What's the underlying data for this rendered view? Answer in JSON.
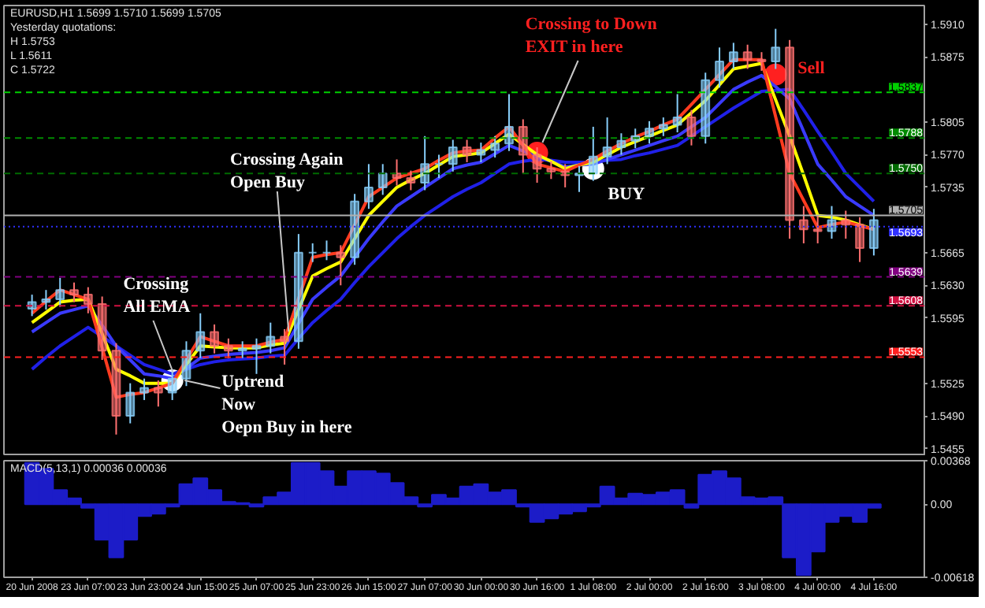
{
  "chart_data": [
    {
      "type": "candlestick",
      "title": "EURUSD,H1 1.5699 1.5710 1.5699 1.5705",
      "categories": [
        null,
        null,
        null,
        null,
        null,
        null,
        null,
        null,
        null,
        null,
        null,
        null,
        null,
        null,
        null,
        null,
        null,
        null,
        null,
        null,
        null,
        null,
        null,
        null,
        null,
        null,
        null,
        null,
        null,
        null,
        null,
        null,
        null,
        null,
        null,
        null,
        null,
        null,
        null,
        null,
        null,
        null,
        null,
        null,
        null,
        null,
        null,
        null,
        null,
        null,
        null,
        null,
        null,
        null,
        null,
        null,
        null,
        null,
        null,
        null,
        null
      ],
      "ohlc": [
        [
          1.5605,
          1.562,
          1.5597,
          1.5612
        ],
        [
          1.5612,
          1.5625,
          1.5604,
          1.5615
        ],
        [
          1.5615,
          1.5638,
          1.5607,
          1.5625
        ],
        [
          1.5625,
          1.5633,
          1.5612,
          1.562
        ],
        [
          1.562,
          1.5628,
          1.56,
          1.561
        ],
        [
          1.561,
          1.5618,
          1.555,
          1.556
        ],
        [
          1.556,
          1.5568,
          1.547,
          1.549
        ],
        [
          1.549,
          1.5525,
          1.5482,
          1.5515
        ],
        [
          1.5515,
          1.553,
          1.5507,
          1.552
        ],
        [
          1.552,
          1.5528,
          1.55,
          1.5515
        ],
        [
          1.5515,
          1.554,
          1.5507,
          1.553
        ],
        [
          1.553,
          1.557,
          1.5522,
          1.556
        ],
        [
          1.556,
          1.56,
          1.5552,
          1.558
        ],
        [
          1.558,
          1.5588,
          1.5557,
          1.5565
        ],
        [
          1.5565,
          1.5573,
          1.5552,
          1.556
        ],
        [
          1.556,
          1.557,
          1.5552,
          1.5562
        ],
        [
          1.5562,
          1.5573,
          1.5535,
          1.5565
        ],
        [
          1.5565,
          1.559,
          1.5557,
          1.5575
        ],
        [
          1.5575,
          1.5583,
          1.5545,
          1.557
        ],
        [
          1.557,
          1.5685,
          1.5562,
          1.5665
        ],
        [
          1.5665,
          1.5675,
          1.5655,
          1.5665
        ],
        [
          1.5665,
          1.5678,
          1.5657,
          1.5665
        ],
        [
          1.5665,
          1.5673,
          1.563,
          1.566
        ],
        [
          1.566,
          1.5728,
          1.5652,
          1.572
        ],
        [
          1.572,
          1.576,
          1.5712,
          1.5735
        ],
        [
          1.5735,
          1.576,
          1.5727,
          1.575
        ],
        [
          1.575,
          1.5765,
          1.5737,
          1.5745
        ],
        [
          1.5745,
          1.5753,
          1.5732,
          1.574
        ],
        [
          1.574,
          1.579,
          1.5732,
          1.576
        ],
        [
          1.576,
          1.577,
          1.5745,
          1.576
        ],
        [
          1.576,
          1.5786,
          1.5752,
          1.5778
        ],
        [
          1.5778,
          1.5786,
          1.5762,
          1.577
        ],
        [
          1.577,
          1.5783,
          1.5762,
          1.5775
        ],
        [
          1.5775,
          1.579,
          1.5767,
          1.5782
        ],
        [
          1.5782,
          1.5835,
          1.5774,
          1.58
        ],
        [
          1.58,
          1.5808,
          1.575,
          1.577
        ],
        [
          1.577,
          1.5778,
          1.574,
          1.5755
        ],
        [
          1.5755,
          1.5763,
          1.5744,
          1.5752
        ],
        [
          1.5752,
          1.576,
          1.5735,
          1.5748
        ],
        [
          1.5748,
          1.5758,
          1.573,
          1.575
        ],
        [
          1.575,
          1.58,
          1.5742,
          1.5768
        ],
        [
          1.5768,
          1.581,
          1.576,
          1.5778
        ],
        [
          1.5778,
          1.5793,
          1.577,
          1.5785
        ],
        [
          1.5785,
          1.5798,
          1.5777,
          1.579
        ],
        [
          1.579,
          1.5806,
          1.5782,
          1.5798
        ],
        [
          1.5798,
          1.581,
          1.579,
          1.5802
        ],
        [
          1.5802,
          1.5835,
          1.5794,
          1.581
        ],
        [
          1.581,
          1.5818,
          1.578,
          1.579
        ],
        [
          1.579,
          1.5858,
          1.5782,
          1.585
        ],
        [
          1.585,
          1.5885,
          1.5842,
          1.587
        ],
        [
          1.587,
          1.589,
          1.5862,
          1.588
        ],
        [
          1.588,
          1.5888,
          1.5862,
          1.5872
        ],
        [
          1.5872,
          1.588,
          1.586,
          1.587
        ],
        [
          1.587,
          1.5905,
          1.5862,
          1.5885
        ],
        [
          1.5885,
          1.5893,
          1.568,
          1.57
        ],
        [
          1.57,
          1.5715,
          1.5675,
          1.569
        ],
        [
          1.569,
          1.5705,
          1.5675,
          1.5688
        ],
        [
          1.5688,
          1.5715,
          1.568,
          1.57
        ],
        [
          1.57,
          1.571,
          1.568,
          1.5695
        ],
        [
          1.5695,
          1.5703,
          1.5655,
          1.567
        ],
        [
          1.567,
          1.5712,
          1.5662,
          1.57
        ]
      ],
      "series": [
        {
          "type": "scatter",
          "marker": "circle",
          "color": "#ffffff",
          "values": [
            null,
            null,
            null,
            null,
            null,
            null,
            null,
            null,
            null,
            null,
            1.5528,
            null,
            null,
            null,
            null,
            null,
            null,
            null,
            null,
            null,
            null,
            null,
            null,
            null,
            null,
            null,
            null,
            null,
            null,
            null,
            null,
            null,
            null,
            null,
            null,
            null,
            null,
            null,
            null,
            null,
            1.5755,
            null,
            null,
            null,
            null,
            null,
            null,
            null,
            null,
            null,
            null,
            null,
            null,
            null,
            null,
            null,
            null,
            null,
            null,
            null,
            null
          ]
        },
        {
          "type": "scatter",
          "marker": "circle",
          "color": "#ff2020",
          "values": [
            null,
            null,
            null,
            null,
            null,
            null,
            null,
            null,
            null,
            null,
            null,
            null,
            null,
            null,
            null,
            null,
            null,
            null,
            null,
            null,
            null,
            null,
            null,
            null,
            null,
            null,
            null,
            null,
            null,
            null,
            null,
            null,
            null,
            null,
            null,
            null,
            1.5772,
            null,
            null,
            null,
            null,
            null,
            null,
            null,
            null,
            null,
            null,
            null,
            null,
            null,
            null,
            null,
            null,
            1.5856,
            null,
            null,
            null,
            null,
            null,
            null,
            null
          ]
        },
        {
          "type": "line",
          "color": "#2020e8",
          "values": [
            1.554,
            1.5553,
            1.5565,
            1.5575,
            1.5585,
            1.5575,
            1.5565,
            1.5555,
            1.5545,
            1.554,
            1.5535,
            1.554,
            1.5545,
            1.5548,
            1.555,
            1.5551,
            1.5552,
            1.5554,
            1.5555,
            1.5573,
            1.559,
            1.5603,
            1.5615,
            1.5633,
            1.565,
            1.5665,
            1.568,
            1.5693,
            1.5705,
            1.5715,
            1.5725,
            1.5733,
            1.574,
            1.575,
            1.576,
            1.5763,
            1.5765,
            1.5764,
            1.5762,
            1.5762,
            1.5762,
            1.5764,
            1.5765,
            1.5769,
            1.5772,
            1.5776,
            1.578,
            1.579,
            1.58,
            1.581,
            1.582,
            1.5829,
            1.5838,
            1.5839,
            1.584,
            1.5818,
            1.5795,
            1.5773,
            1.575,
            1.5735,
            1.572
          ]
        },
        {
          "type": "line",
          "color": "#3a3aff",
          "values": [
            1.558,
            1.559,
            1.56,
            1.5604,
            1.5608,
            1.5587,
            1.5565,
            1.555,
            1.5535,
            1.5533,
            1.553,
            1.5541,
            1.5552,
            1.5554,
            1.5556,
            1.5557,
            1.5558,
            1.556,
            1.5563,
            1.5589,
            1.5615,
            1.5628,
            1.564,
            1.566,
            1.568,
            1.5698,
            1.5715,
            1.5725,
            1.5735,
            1.5745,
            1.5755,
            1.5759,
            1.5762,
            1.5771,
            1.578,
            1.5774,
            1.5768,
            1.5763,
            1.5757,
            1.5759,
            1.576,
            1.5765,
            1.577,
            1.5775,
            1.578,
            1.5785,
            1.579,
            1.58,
            1.581,
            1.5825,
            1.584,
            1.5848,
            1.5855,
            1.5843,
            1.583,
            1.5795,
            1.576,
            1.5743,
            1.5725,
            1.5715,
            1.5705
          ]
        },
        {
          "type": "line",
          "color": "#ffff00",
          "values": [
            1.559,
            1.5601,
            1.5612,
            1.5614,
            1.5615,
            1.5578,
            1.554,
            1.5533,
            1.5525,
            1.5525,
            1.5525,
            1.5545,
            1.5565,
            1.5564,
            1.5563,
            1.5563,
            1.5563,
            1.5566,
            1.5568,
            1.5604,
            1.564,
            1.5648,
            1.5655,
            1.568,
            1.5705,
            1.572,
            1.5735,
            1.5743,
            1.575,
            1.5759,
            1.5768,
            1.577,
            1.5772,
            1.5782,
            1.5792,
            1.5781,
            1.577,
            1.5763,
            1.5755,
            1.5759,
            1.5762,
            1.577,
            1.5778,
            1.5784,
            1.579,
            1.5796,
            1.5802,
            1.5815,
            1.5828,
            1.5845,
            1.5862,
            1.5865,
            1.5868,
            1.5829,
            1.579,
            1.5748,
            1.5705,
            1.5703,
            1.57,
            1.5695,
            1.569
          ]
        },
        {
          "type": "line",
          "color": "#ff3b1f",
          "values": [
            1.56,
            1.5613,
            1.5625,
            1.562,
            1.5615,
            1.5563,
            1.551,
            1.5513,
            1.5515,
            1.552,
            1.5525,
            1.555,
            1.5575,
            1.557,
            1.5565,
            1.5565,
            1.5565,
            1.5569,
            1.5572,
            1.5616,
            1.566,
            1.5663,
            1.5665,
            1.5695,
            1.5725,
            1.5735,
            1.5745,
            1.575,
            1.5755,
            1.5764,
            1.5772,
            1.5774,
            1.5775,
            1.5788,
            1.58,
            1.578,
            1.576,
            1.5756,
            1.5752,
            1.5759,
            1.5765,
            1.5774,
            1.5782,
            1.5789,
            1.5795,
            1.5802,
            1.5808,
            1.5824,
            1.584,
            1.5856,
            1.5872,
            1.5872,
            1.5872,
            1.5811,
            1.575,
            1.5721,
            1.5692,
            1.5695,
            1.5698,
            1.5694,
            1.569
          ]
        }
      ],
      "annotations": [
        "Yesterday quotations:",
        "H 1.5753",
        "L 1.5611",
        "C 1.5722",
        "Crossing\nAll EMA",
        "Uptrend\nNow\nOepn Buy in here",
        "Crossing Again\nOpen Buy",
        "Crossing to Down\nEXIT in here",
        "BUY",
        "Sell"
      ],
      "ref_lines": [
        {
          "axis": "y",
          "value": 1.5837,
          "label": "1.5837",
          "color": "#00d000",
          "line_style": "dashed"
        },
        {
          "axis": "y",
          "value": 1.5788,
          "label": "1.5788",
          "color": "#008a00",
          "line_style": "dashed"
        },
        {
          "axis": "y",
          "value": 1.575,
          "label": "1.5750",
          "color": "#006a00",
          "line_style": "dashed"
        },
        {
          "axis": "y",
          "value": 1.5705,
          "label": "1.5705",
          "color": "#b0b0b0",
          "line_style": "solid"
        },
        {
          "axis": "y",
          "value": 1.5693,
          "label": "1.5693",
          "color": "#3030ff",
          "line_style": "dotted"
        },
        {
          "axis": "y",
          "value": 1.5639,
          "label": "1.5639",
          "color": "#800080",
          "line_style": "dashed"
        },
        {
          "axis": "y",
          "value": 1.5608,
          "label": "1.5608",
          "color": "#d01040",
          "line_style": "dashed"
        },
        {
          "axis": "y",
          "value": 1.5553,
          "label": "1.5553",
          "color": "#ff2020",
          "line_style": "dashed"
        }
      ],
      "ylim": [
        1.5447,
        1.593
      ],
      "yticks": [
        {
          "value": 1.591,
          "label": "1.5910"
        },
        {
          "value": 1.5875,
          "label": "1.5875"
        },
        {
          "value": 1.5805,
          "label": "1.5805"
        },
        {
          "value": 1.577,
          "label": "1.5770"
        },
        {
          "value": 1.5735,
          "label": "1.5735"
        },
        {
          "value": 1.5665,
          "label": "1.5665"
        },
        {
          "value": 1.563,
          "label": "1.5630"
        },
        {
          "value": 1.5595,
          "label": "1.5595"
        },
        {
          "value": 1.5525,
          "label": "1.5525"
        },
        {
          "value": 1.549,
          "label": "1.5490"
        },
        {
          "value": 1.5455,
          "label": "1.5455"
        }
      ],
      "tick_labels": "y"
    },
    {
      "type": "bar",
      "title": "MACD(5,13,1) 0.00036 0.00036",
      "color": "#1c1cc8",
      "categories": [
        "20 Jun 2008",
        null,
        null,
        null,
        "23 Jun 07:00",
        null,
        null,
        null,
        "23 Jun 23:00",
        null,
        null,
        null,
        "24 Jun 15:00",
        null,
        null,
        null,
        "25 Jun 07:00",
        null,
        null,
        null,
        "25 Jun 23:00",
        null,
        null,
        null,
        "26 Jun 15:00",
        null,
        null,
        null,
        "27 Jun 07:00",
        null,
        null,
        null,
        "30 Jun 00:00",
        null,
        null,
        null,
        "30 Jun 16:00",
        null,
        null,
        null,
        "1 Jul 08:00",
        null,
        null,
        null,
        "2 Jul 00:00",
        null,
        null,
        null,
        "2 Jul 16:00",
        null,
        null,
        null,
        "3 Jul 08:00",
        null,
        null,
        null,
        "4 Jul 00:00",
        null,
        null,
        null,
        "4 Jul 16:00"
      ],
      "values": [
        0.0035,
        0.003,
        0.0012,
        0.0005,
        -0.0003,
        -0.003,
        -0.0045,
        -0.003,
        -0.001,
        -0.0008,
        -0.0002,
        0.0017,
        0.0022,
        0.0012,
        0.0002,
        0.0001,
        -0.0002,
        0.0006,
        0.001,
        0.0035,
        0.0035,
        0.0028,
        0.0015,
        0.0028,
        0.0028,
        0.0026,
        0.0018,
        0.0006,
        -0.0002,
        0.0008,
        0.0005,
        0.0015,
        0.0017,
        0.001,
        0.0012,
        -0.0002,
        -0.0015,
        -0.0012,
        -0.0008,
        -0.0006,
        -0.0002,
        0.0015,
        0.0005,
        0.0009,
        0.0008,
        0.001,
        0.0012,
        -0.0003,
        0.0025,
        0.0028,
        0.0022,
        0.0006,
        0.0005,
        0.0006,
        -0.0045,
        -0.006,
        -0.004,
        -0.0015,
        -0.001,
        -0.0015,
        -0.0003
      ],
      "ylim": [
        -0.00618,
        0.00368
      ],
      "yticks": [
        {
          "value": 0.00368,
          "label": "0.00368"
        },
        {
          "value": 0,
          "label": "0.00"
        },
        {
          "value": -0.00618,
          "label": "-0.00618"
        }
      ]
    }
  ]
}
